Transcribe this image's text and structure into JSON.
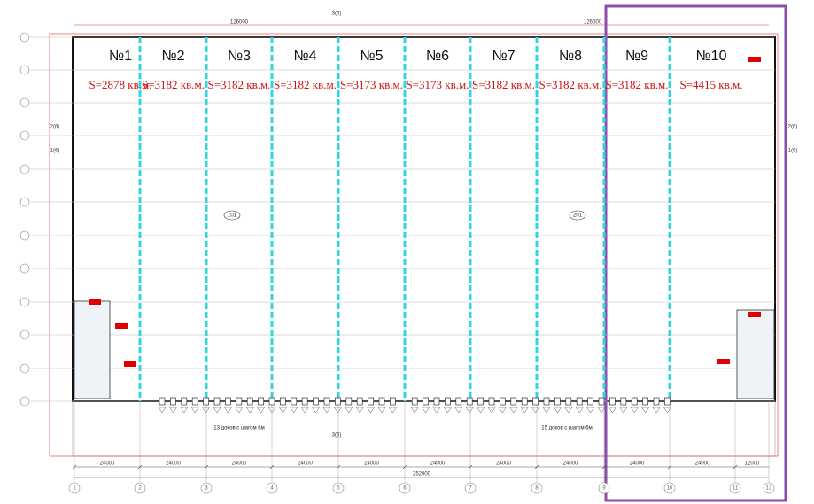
{
  "sections": [
    {
      "label": "№1",
      "area": "S=2878 кв.м."
    },
    {
      "label": "№2",
      "area": "S=3182 кв.м."
    },
    {
      "label": "№3",
      "area": "S=3182 кв.м."
    },
    {
      "label": "№4",
      "area": "S=3182 кв.м."
    },
    {
      "label": "№5",
      "area": "S=3173 кв.м."
    },
    {
      "label": "№6",
      "area": "S=3173 кв.м."
    },
    {
      "label": "№7",
      "area": "S=3182 кв.м."
    },
    {
      "label": "№8",
      "area": "S=3182 кв.м."
    },
    {
      "label": "№9",
      "area": "S=3182 кв.м."
    },
    {
      "label": "№10",
      "area": "S=4415 кв.м."
    }
  ],
  "axes": [
    "1",
    "2",
    "3",
    "4",
    "5",
    "6",
    "7",
    "8",
    "9",
    "10",
    "11",
    "12"
  ],
  "dimensions": {
    "bays": [
      "24000",
      "24000",
      "24000",
      "24000",
      "24000",
      "24000",
      "24000",
      "24000",
      "24000",
      "24000",
      "12000"
    ],
    "total": "252000",
    "top": [
      "126000",
      "126000"
    ]
  },
  "notes": [
    "13 доков с шагом 6м",
    "15 доков с шагом 6м"
  ],
  "room_tags": [
    "101",
    "201"
  ],
  "section_marks": [
    "3(6)",
    "3(6)",
    "2(6)",
    "1(6)",
    "2(6)",
    "1(6)"
  ]
}
